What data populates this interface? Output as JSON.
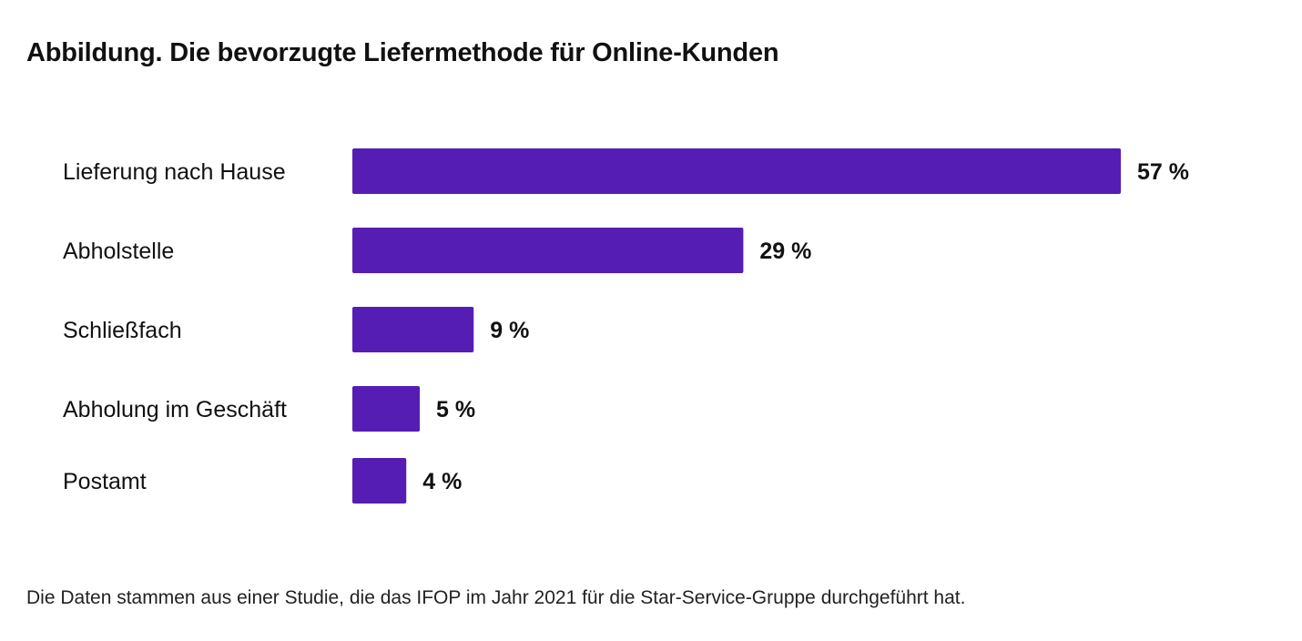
{
  "title": "Abbildung. Die bevorzugte Liefermethode für Online-Kunden",
  "footnote": "Die Daten stammen aus einer Studie, die das IFOP im Jahr 2021 für die Star-Service-Gruppe durchgeführt hat.",
  "colors": {
    "bar": "#561DB4",
    "text": "#111111"
  },
  "chart_data": {
    "type": "bar",
    "orientation": "horizontal",
    "categories": [
      "Lieferung nach Hause",
      "Abholstelle",
      "Schließfach",
      "Abholung im Geschäft",
      "Postamt"
    ],
    "values": [
      57,
      29,
      9,
      5,
      4
    ],
    "value_labels": [
      "57 %",
      "29 %",
      "9 %",
      "5 %",
      "4 %"
    ],
    "title": "Abbildung. Die bevorzugte Liefermethode für Online-Kunden",
    "xlabel": "",
    "ylabel": "",
    "grid": false,
    "legend": "none"
  }
}
